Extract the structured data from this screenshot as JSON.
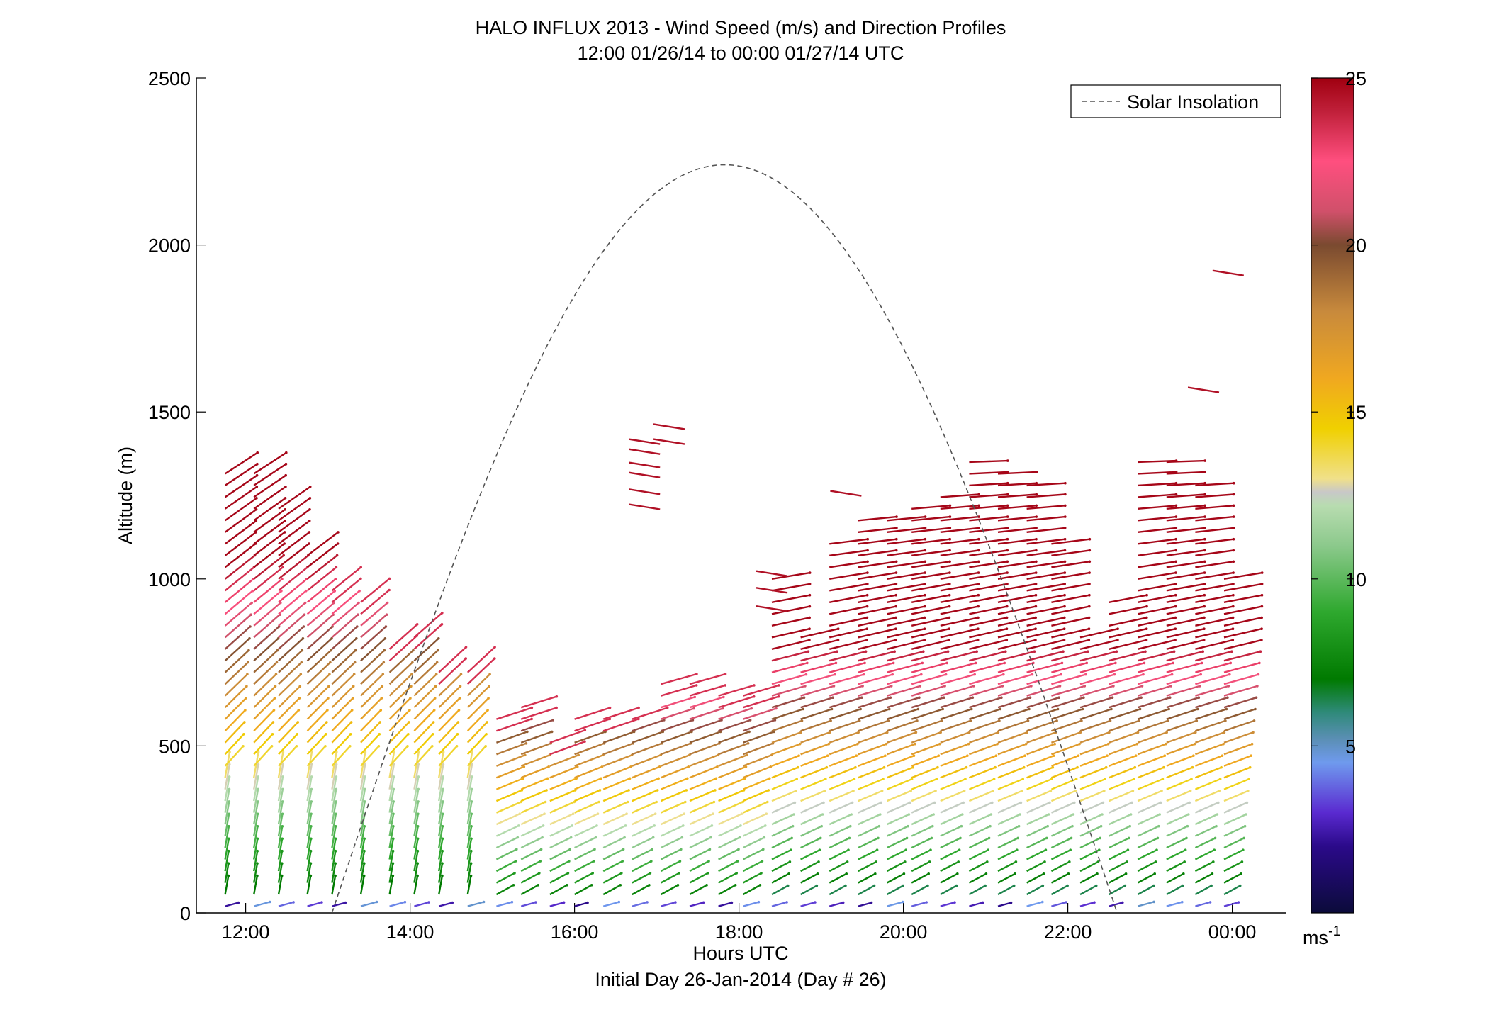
{
  "chart_data": {
    "type": "wind-barb-profile",
    "title": "HALO INFLUX 2013 - Wind Speed (m/s) and Direction Profiles",
    "subtitle": "12:00 01/26/14 to 00:00 01/27/14  UTC",
    "xlabel": "Hours UTC",
    "xlabel2": "Initial Day 26-Jan-2014 (Day # 26)",
    "ylabel": "Altitude (m)",
    "x_ticks": [
      12,
      14,
      16,
      18,
      20,
      22,
      24
    ],
    "x_tick_labels": [
      "12:00",
      "14:00",
      "16:00",
      "18:00",
      "20:00",
      "22:00",
      "00:00"
    ],
    "y_ticks": [
      0,
      500,
      1000,
      1500,
      2000,
      2500
    ],
    "y_tick_labels": [
      "0",
      "500",
      "1000",
      "1500",
      "2000",
      "2500"
    ],
    "xlim": [
      11.4,
      24.65
    ],
    "ylim": [
      0,
      2500
    ],
    "legend": {
      "label": "Solar Insolation",
      "position": "top-right",
      "line_color": "#555555",
      "style": "dashed"
    },
    "colorbar": {
      "range": [
        0,
        25
      ],
      "ticks": [
        5,
        10,
        15,
        20,
        25
      ],
      "tick_labels": [
        "5",
        "10",
        "15",
        "20",
        "25"
      ],
      "unit": "ms-1",
      "colors": [
        [
          0,
          "#0b0b3a"
        ],
        [
          2,
          "#2b0a8a"
        ],
        [
          3,
          "#5a2ad0"
        ],
        [
          4.5,
          "#6f9aee"
        ],
        [
          5.2,
          "#5b8fb5"
        ],
        [
          6,
          "#2f8a7a"
        ],
        [
          7,
          "#007a00"
        ],
        [
          9,
          "#2ea82e"
        ],
        [
          11,
          "#8cc98c"
        ],
        [
          12.2,
          "#b8dcb0"
        ],
        [
          12.6,
          "#c8c8c8"
        ],
        [
          13,
          "#f0e08a"
        ],
        [
          14.5,
          "#f0d000"
        ],
        [
          16,
          "#f0a820"
        ],
        [
          18,
          "#c88a3c"
        ],
        [
          20,
          "#7a4a30"
        ],
        [
          21,
          "#d0506a"
        ],
        [
          22.5,
          "#ff4f7f"
        ],
        [
          24,
          "#c0203a"
        ],
        [
          25,
          "#a00010"
        ]
      ]
    },
    "solar_insolation": {
      "peak_time": 17.85,
      "peak_value": 2240,
      "start_time": 13.05,
      "end_time": 22.6,
      "color": "#555555"
    },
    "wind_profiles": [
      {
        "t": 11.75,
        "top": 1330,
        "mode": "west"
      },
      {
        "t": 12.1,
        "top": 1330,
        "mode": "west"
      },
      {
        "t": 12.4,
        "top": 1210,
        "mode": "west"
      },
      {
        "t": 12.75,
        "top": 1100,
        "mode": "west"
      },
      {
        "t": 13.05,
        "top": 975,
        "mode": "west"
      },
      {
        "t": 13.4,
        "top": 940,
        "mode": "west"
      },
      {
        "t": 13.75,
        "top": 800,
        "mode": "west"
      },
      {
        "t": 14.05,
        "top": 835,
        "mode": "west"
      },
      {
        "t": 14.35,
        "top": 730,
        "mode": "west"
      },
      {
        "t": 14.7,
        "top": 725,
        "mode": "west"
      },
      {
        "t": 15.05,
        "top": 600,
        "mode": "west"
      },
      {
        "t": 15.35,
        "top": 630,
        "mode": "west"
      },
      {
        "t": 15.7,
        "top": 520,
        "mode": "west"
      },
      {
        "t": 16.0,
        "top": 590,
        "mode": "west"
      },
      {
        "t": 16.35,
        "top": 585,
        "mode": "west"
      },
      {
        "t": 16.7,
        "top": 610,
        "mode": "west"
      },
      {
        "t": 17.05,
        "top": 690,
        "mode": "west"
      },
      {
        "t": 17.4,
        "top": 690,
        "mode": "west"
      },
      {
        "t": 17.75,
        "top": 665,
        "mode": "west"
      },
      {
        "t": 18.05,
        "top": 665,
        "mode": "west"
      },
      {
        "t": 18.4,
        "top": 1020,
        "mode": "west"
      },
      {
        "t": 18.75,
        "top": 840,
        "mode": "west"
      },
      {
        "t": 19.1,
        "top": 1110,
        "mode": "west"
      },
      {
        "t": 19.45,
        "top": 1180,
        "mode": "west"
      },
      {
        "t": 19.8,
        "top": 1200,
        "mode": "west"
      },
      {
        "t": 20.1,
        "top": 1210,
        "mode": "west"
      },
      {
        "t": 20.45,
        "top": 1250,
        "mode": "west"
      },
      {
        "t": 20.8,
        "top": 1370,
        "mode": "west"
      },
      {
        "t": 21.15,
        "top": 1330,
        "mode": "west"
      },
      {
        "t": 21.5,
        "top": 1290,
        "mode": "west"
      },
      {
        "t": 21.8,
        "top": 1110,
        "mode": "west"
      },
      {
        "t": 22.15,
        "top": 830,
        "mode": "west"
      },
      {
        "t": 22.5,
        "top": 940,
        "mode": "west"
      },
      {
        "t": 22.85,
        "top": 1360,
        "mode": "west"
      },
      {
        "t": 23.2,
        "top": 1370,
        "mode": "west"
      },
      {
        "t": 23.55,
        "top": 1300,
        "mode": "west"
      },
      {
        "t": 23.9,
        "top": 1020,
        "mode": "west"
      }
    ],
    "isolated_barbs": [
      {
        "t": 16.85,
        "alt": 1410,
        "speed": 24.5
      },
      {
        "t": 16.85,
        "alt": 1380,
        "speed": 24.5
      },
      {
        "t": 16.85,
        "alt": 1340,
        "speed": 24.5
      },
      {
        "t": 16.85,
        "alt": 1310,
        "speed": 24.5
      },
      {
        "t": 16.85,
        "alt": 1260,
        "speed": 24.5
      },
      {
        "t": 16.85,
        "alt": 1215,
        "speed": 24.5
      },
      {
        "t": 17.15,
        "alt": 1455,
        "speed": 24.5
      },
      {
        "t": 17.15,
        "alt": 1410,
        "speed": 24.5
      },
      {
        "t": 18.4,
        "alt": 1015,
        "speed": 24.5
      },
      {
        "t": 18.4,
        "alt": 965,
        "speed": 24.5
      },
      {
        "t": 18.4,
        "alt": 910,
        "speed": 24.5
      },
      {
        "t": 19.3,
        "alt": 1255,
        "speed": 24.5
      },
      {
        "t": 23.65,
        "alt": 1565,
        "speed": 24.5
      },
      {
        "t": 23.95,
        "alt": 1915,
        "speed": 24.5
      }
    ]
  }
}
